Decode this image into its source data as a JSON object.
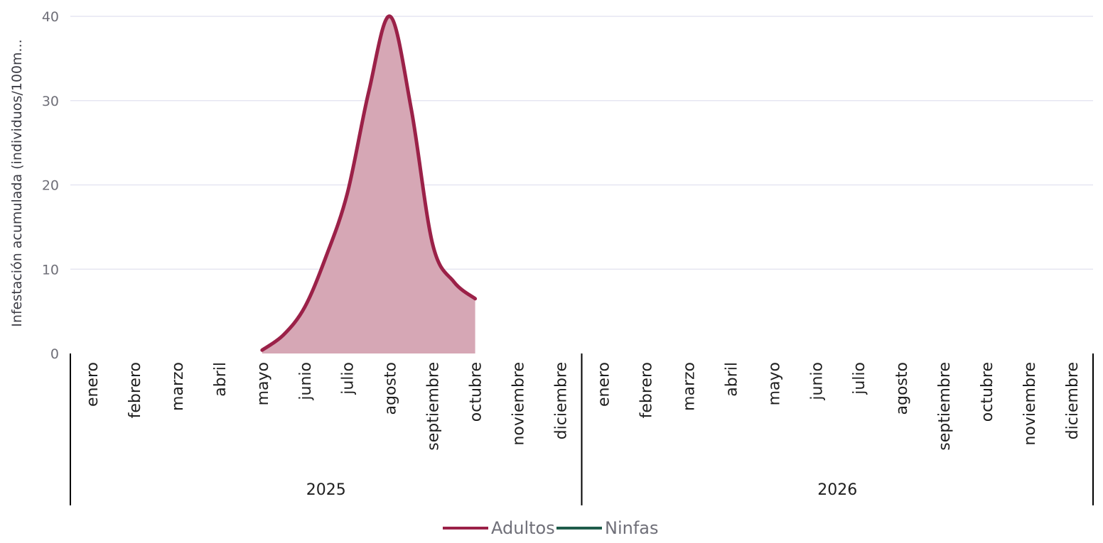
{
  "chart_data": {
    "type": "area",
    "ylabel": "Infestación acumulada (individuos/100m...",
    "xlabel": "",
    "ylim": [
      0,
      40
    ],
    "yticks": [
      0,
      10,
      20,
      30,
      40
    ],
    "grid": true,
    "legend_position": "bottom-center",
    "years": [
      {
        "label": "2025",
        "months": [
          "enero",
          "febrero",
          "marzo",
          "abril",
          "mayo",
          "junio",
          "julio",
          "agosto",
          "septiembre",
          "octubre",
          "noviembre",
          "diciembre"
        ]
      },
      {
        "label": "2026",
        "months": [
          "enero",
          "febrero",
          "marzo",
          "abril",
          "mayo",
          "junio",
          "julio",
          "agosto",
          "septiembre",
          "octubre",
          "noviembre",
          "diciembre"
        ]
      }
    ],
    "series": [
      {
        "name": "Adultos",
        "color": "#9b2148",
        "fill": "#d6a7b5",
        "points": [
          {
            "x": 4.0,
            "y": 0.4
          },
          {
            "x": 4.5,
            "y": 2.2
          },
          {
            "x": 5.0,
            "y": 5.5
          },
          {
            "x": 5.5,
            "y": 11.5
          },
          {
            "x": 6.0,
            "y": 19.0
          },
          {
            "x": 6.5,
            "y": 31.0
          },
          {
            "x": 7.0,
            "y": 40.0
          },
          {
            "x": 7.5,
            "y": 29.0
          },
          {
            "x": 8.0,
            "y": 13.0
          },
          {
            "x": 8.5,
            "y": 8.5
          },
          {
            "x": 9.0,
            "y": 6.5
          }
        ]
      },
      {
        "name": "Ninfas",
        "color": "#1f5c4a",
        "points": []
      }
    ]
  }
}
